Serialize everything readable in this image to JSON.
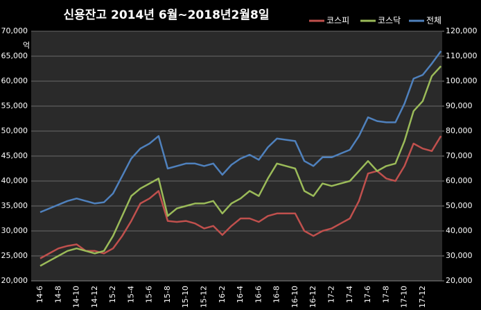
{
  "chart_data": {
    "type": "line",
    "title": "신용잔고 2014년 6월~2018년2월8일",
    "y_label": "억",
    "categories": [
      "14-6",
      null,
      "14-8",
      null,
      "14-10",
      null,
      "14-12",
      null,
      "15-2",
      null,
      "15-4",
      null,
      "15-6",
      null,
      "15-8",
      null,
      "15-10",
      null,
      "15-12",
      null,
      "16-2",
      null,
      "16-4",
      null,
      "16-6",
      null,
      "16-8",
      null,
      "16-10",
      null,
      "16-12",
      null,
      "17-2",
      null,
      "17-4",
      null,
      "17-6",
      null,
      "17-8",
      null,
      "17-10",
      null,
      "17-12",
      null,
      null
    ],
    "series": [
      {
        "name": "코스피",
        "color": "#c0504d",
        "values": [
          24500,
          25500,
          26500,
          27000,
          27300,
          26000,
          26000,
          25500,
          26500,
          29000,
          32000,
          35500,
          36500,
          38000,
          32000,
          31800,
          32000,
          31500,
          30500,
          31000,
          29200,
          31000,
          32500,
          32500,
          31800,
          33000,
          33500,
          33500,
          33500,
          30000,
          29000,
          30000,
          30500,
          31500,
          32500,
          36000,
          41500,
          42000,
          40500,
          40000,
          43000,
          47500,
          46500,
          46000,
          49000
        ]
      },
      {
        "name": "코스닥",
        "color": "#9bbb59",
        "values": [
          23000,
          24000,
          25000,
          26000,
          26500,
          26000,
          25500,
          26000,
          29000,
          33000,
          37000,
          38500,
          39500,
          40500,
          33000,
          34500,
          35000,
          35500,
          35500,
          36000,
          33500,
          35500,
          36500,
          38000,
          37000,
          40500,
          43500,
          43000,
          42500,
          38000,
          37000,
          39500,
          39000,
          39500,
          40000,
          42000,
          44000,
          42000,
          43000,
          43500,
          48000,
          54000,
          56000,
          61000,
          63000
        ]
      },
      {
        "name": "전체",
        "color": "#4f81bd",
        "axis": "y2",
        "values": [
          47500,
          49000,
          50500,
          52000,
          53000,
          52000,
          51000,
          51500,
          55000,
          62000,
          69000,
          73000,
          75000,
          78000,
          65000,
          66000,
          67000,
          67000,
          66000,
          67000,
          62500,
          66500,
          69000,
          70500,
          68500,
          73500,
          77000,
          76500,
          76000,
          68000,
          66000,
          69500,
          69500,
          71000,
          72500,
          78000,
          85500,
          84000,
          83500,
          83500,
          91000,
          101000,
          102500,
          107000,
          112000
        ]
      }
    ],
    "ylim": [
      20000,
      70000
    ],
    "yticks": [
      {
        "value": 20000,
        "label": "20,000"
      },
      {
        "value": 25000,
        "label": "25,000"
      },
      {
        "value": 30000,
        "label": "30,000"
      },
      {
        "value": 35000,
        "label": "35,000"
      },
      {
        "value": 40000,
        "label": "40,000"
      },
      {
        "value": 45000,
        "label": "45,000"
      },
      {
        "value": 50000,
        "label": "50,000"
      },
      {
        "value": 55000,
        "label": "55,000"
      },
      {
        "value": 60000,
        "label": "60,000"
      },
      {
        "value": 65000,
        "label": "65,000"
      },
      {
        "value": 70000,
        "label": "70,000"
      }
    ],
    "y2lim": [
      20000,
      120000
    ],
    "y2ticks": [
      {
        "value": 20000,
        "label": "20,000"
      },
      {
        "value": 30000,
        "label": "30,000"
      },
      {
        "value": 40000,
        "label": "40,000"
      },
      {
        "value": 50000,
        "label": "50,000"
      },
      {
        "value": 60000,
        "label": "60,000"
      },
      {
        "value": 70000,
        "label": "70,000"
      },
      {
        "value": 80000,
        "label": "80,000"
      },
      {
        "value": 90000,
        "label": "90,000"
      },
      {
        "value": 100000,
        "label": "100,000"
      },
      {
        "value": 110000,
        "label": "110,000"
      },
      {
        "value": 120000,
        "label": "120,000"
      }
    ],
    "grid": true
  }
}
